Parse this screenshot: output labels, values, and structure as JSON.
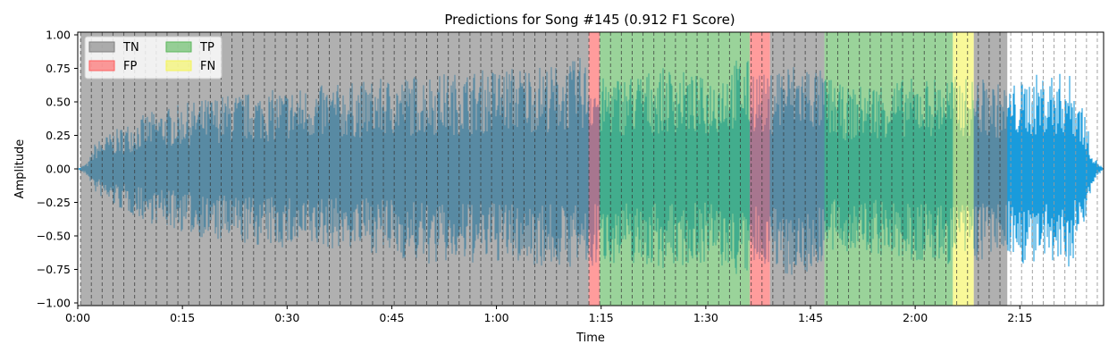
{
  "chart_data": {
    "type": "area",
    "title": "Predictions for Song #145 (0.912 F1 Score)",
    "xlabel": "Time",
    "ylabel": "Amplitude",
    "xlim": [
      0,
      147
    ],
    "ylim": [
      -1.02,
      1.02
    ],
    "x_ticks": [
      {
        "value": 0,
        "label": "0:00"
      },
      {
        "value": 15,
        "label": "0:15"
      },
      {
        "value": 30,
        "label": "0:30"
      },
      {
        "value": 45,
        "label": "0:45"
      },
      {
        "value": 60,
        "label": "1:00"
      },
      {
        "value": 75,
        "label": "1:15"
      },
      {
        "value": 90,
        "label": "1:30"
      },
      {
        "value": 105,
        "label": "1:45"
      },
      {
        "value": 120,
        "label": "2:00"
      },
      {
        "value": 135,
        "label": "2:15"
      }
    ],
    "y_ticks": [
      {
        "value": 1.0,
        "label": "1.00"
      },
      {
        "value": 0.75,
        "label": "0.75"
      },
      {
        "value": 0.5,
        "label": "0.50"
      },
      {
        "value": 0.25,
        "label": "0.25"
      },
      {
        "value": 0.0,
        "label": "0.00"
      },
      {
        "value": -0.25,
        "label": "−0.25"
      },
      {
        "value": -0.5,
        "label": "−0.50"
      },
      {
        "value": -0.75,
        "label": "−0.75"
      },
      {
        "value": -1.0,
        "label": "−1.00"
      }
    ],
    "legend": {
      "placement": "top-left",
      "columns": 2,
      "entries": [
        {
          "label": "TN",
          "color": "#808080"
        },
        {
          "label": "FP",
          "color": "#ff6060"
        },
        {
          "label": "TP",
          "color": "#5cb85c"
        },
        {
          "label": "FN",
          "color": "#f5f55a"
        }
      ]
    },
    "segments": [
      {
        "start": 0.4,
        "end": 73.2,
        "label": "TN"
      },
      {
        "start": 73.2,
        "end": 74.8,
        "label": "FP"
      },
      {
        "start": 74.8,
        "end": 96.3,
        "label": "TP"
      },
      {
        "start": 96.3,
        "end": 99.2,
        "label": "FP"
      },
      {
        "start": 99.2,
        "end": 107.0,
        "label": "TN"
      },
      {
        "start": 107.0,
        "end": 125.4,
        "label": "TP"
      },
      {
        "start": 125.4,
        "end": 128.4,
        "label": "FN"
      },
      {
        "start": 128.4,
        "end": 133.2,
        "label": "TN"
      }
    ],
    "beat_interval": 1.55,
    "beat_start": 0.4,
    "beat_end": 146.5,
    "series": [
      {
        "color": "#1a9bdc",
        "envelope": {
          "x": [
            0,
            1.5,
            2.5,
            5,
            10,
            20,
            30,
            40,
            50,
            55,
            60,
            65,
            70,
            72,
            73.2,
            75,
            80,
            85,
            90,
            95,
            97,
            99,
            100,
            105,
            107,
            110,
            115,
            120,
            125,
            127,
            130,
            133,
            135,
            138,
            142,
            144,
            145.5,
            147
          ],
          "max": [
            0.0,
            0.05,
            0.2,
            0.28,
            0.42,
            0.55,
            0.6,
            0.65,
            0.72,
            0.72,
            0.76,
            0.78,
            0.78,
            0.84,
            0.8,
            0.68,
            0.72,
            0.76,
            0.68,
            0.85,
            0.78,
            0.68,
            0.8,
            0.8,
            0.72,
            0.6,
            0.66,
            0.68,
            0.7,
            0.68,
            0.68,
            0.62,
            0.66,
            0.72,
            0.72,
            0.5,
            0.1,
            0.0
          ],
          "min": [
            0.0,
            -0.06,
            -0.18,
            -0.28,
            -0.4,
            -0.55,
            -0.6,
            -0.6,
            -0.72,
            -0.72,
            -0.7,
            -0.72,
            -0.75,
            -0.72,
            -0.8,
            -0.7,
            -0.72,
            -0.75,
            -0.7,
            -0.82,
            -0.8,
            -0.7,
            -0.8,
            -0.8,
            -0.68,
            -0.62,
            -0.66,
            -0.72,
            -0.72,
            -0.7,
            -0.7,
            -0.62,
            -0.7,
            -0.75,
            -0.75,
            -0.5,
            -0.1,
            0.0
          ]
        }
      }
    ]
  }
}
